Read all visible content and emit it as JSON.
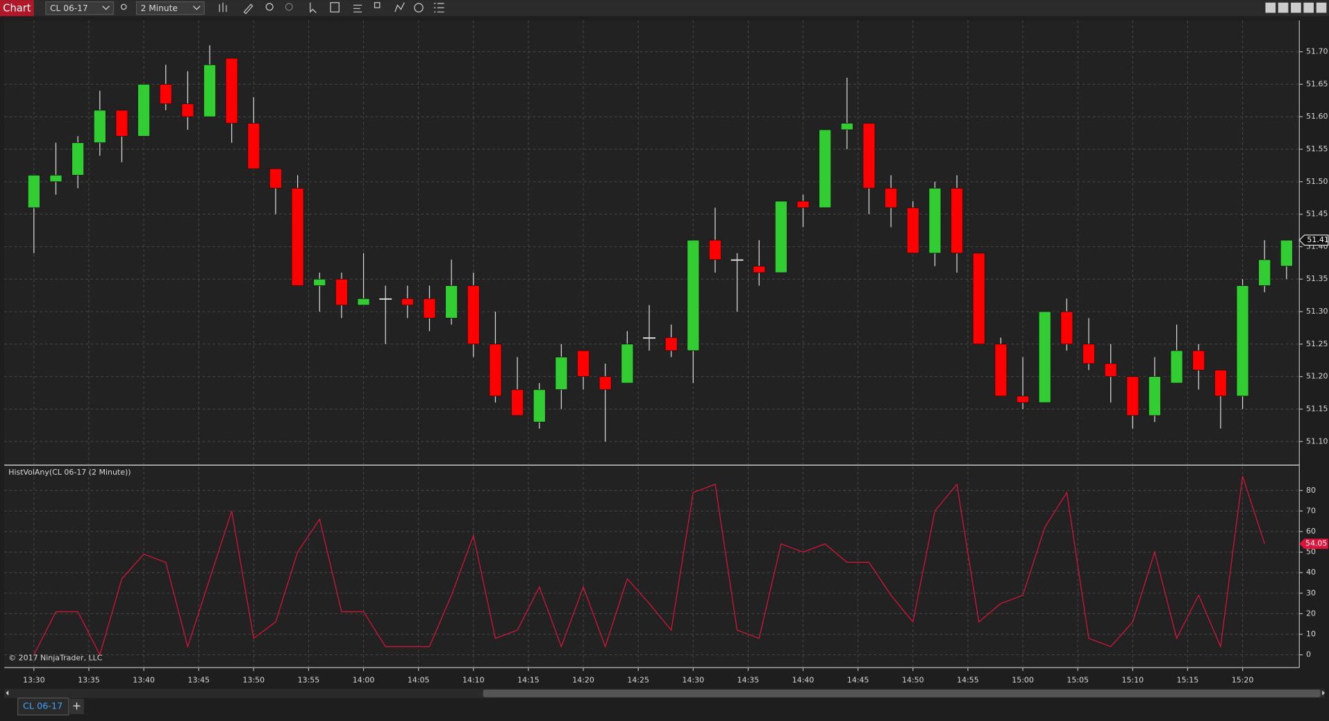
{
  "toolbar": {
    "title": "Chart",
    "instrument": "CL 06-17",
    "interval": "2 Minute"
  },
  "chart_data": [
    {
      "type": "candlestick",
      "x": [
        "13:30",
        "13:32",
        "13:34",
        "13:36",
        "13:38",
        "13:40",
        "13:42",
        "13:44",
        "13:46",
        "13:48",
        "13:50",
        "13:52",
        "13:54",
        "13:56",
        "13:58",
        "14:00",
        "14:02",
        "14:04",
        "14:06",
        "14:08",
        "14:10",
        "14:12",
        "14:14",
        "14:16",
        "14:18",
        "14:20",
        "14:22",
        "14:24",
        "14:26",
        "14:28",
        "14:30",
        "14:32",
        "14:34",
        "14:36",
        "14:38",
        "14:40",
        "14:42",
        "14:44",
        "14:46",
        "14:48",
        "14:50",
        "14:52",
        "14:54",
        "14:56",
        "14:58",
        "15:00",
        "15:02",
        "15:04",
        "15:06",
        "15:08",
        "15:10",
        "15:12",
        "15:14",
        "15:16",
        "15:18",
        "15:20",
        "15:22",
        "15:24"
      ],
      "open": [
        51.46,
        51.5,
        51.51,
        51.56,
        51.61,
        51.57,
        51.65,
        51.62,
        51.6,
        51.69,
        51.59,
        51.52,
        51.49,
        51.34,
        51.35,
        51.31,
        51.32,
        51.32,
        51.32,
        51.29,
        51.34,
        51.25,
        51.18,
        51.13,
        51.18,
        51.24,
        51.2,
        51.19,
        51.26,
        51.26,
        51.24,
        51.41,
        51.38,
        51.37,
        51.36,
        51.47,
        51.46,
        51.58,
        51.59,
        51.49,
        51.46,
        51.39,
        51.49,
        51.39,
        51.25,
        51.17,
        51.16,
        51.3,
        51.25,
        51.22,
        51.2,
        51.14,
        51.19,
        51.24,
        51.21,
        51.17,
        51.34,
        51.37
      ],
      "high": [
        51.51,
        51.56,
        51.57,
        51.64,
        51.61,
        51.65,
        51.68,
        51.67,
        51.71,
        51.69,
        51.63,
        51.52,
        51.51,
        51.36,
        51.36,
        51.39,
        51.34,
        51.34,
        51.34,
        51.38,
        51.36,
        51.3,
        51.23,
        51.19,
        51.25,
        51.24,
        51.22,
        51.27,
        51.31,
        51.28,
        51.41,
        51.46,
        51.39,
        51.41,
        51.47,
        51.48,
        51.58,
        51.66,
        51.59,
        51.51,
        51.47,
        51.5,
        51.51,
        51.39,
        51.26,
        51.23,
        51.3,
        51.32,
        51.29,
        51.25,
        51.2,
        51.23,
        51.28,
        51.25,
        51.21,
        51.35,
        51.41,
        51.41
      ],
      "low": [
        51.39,
        51.48,
        51.49,
        51.54,
        51.53,
        51.57,
        51.61,
        51.58,
        51.6,
        51.56,
        51.52,
        51.45,
        51.34,
        51.3,
        51.29,
        51.31,
        51.25,
        51.29,
        51.27,
        51.28,
        51.23,
        51.16,
        51.14,
        51.12,
        51.15,
        51.18,
        51.1,
        51.19,
        51.24,
        51.23,
        51.19,
        51.36,
        51.3,
        51.34,
        51.36,
        51.43,
        51.46,
        51.55,
        51.45,
        51.43,
        51.39,
        51.37,
        51.36,
        51.25,
        51.17,
        51.15,
        51.16,
        51.24,
        51.21,
        51.16,
        51.12,
        51.13,
        51.19,
        51.18,
        51.12,
        51.15,
        51.33,
        51.35
      ],
      "close": [
        51.51,
        51.51,
        51.56,
        51.61,
        51.57,
        51.65,
        51.62,
        51.6,
        51.68,
        51.59,
        51.52,
        51.49,
        51.34,
        51.35,
        51.31,
        51.32,
        51.32,
        51.31,
        51.29,
        51.34,
        51.25,
        51.17,
        51.14,
        51.18,
        51.23,
        51.2,
        51.18,
        51.25,
        51.26,
        51.24,
        51.41,
        51.38,
        51.38,
        51.36,
        51.47,
        51.46,
        51.58,
        51.59,
        51.49,
        51.46,
        51.39,
        51.49,
        51.39,
        51.25,
        51.17,
        51.16,
        51.3,
        51.25,
        51.22,
        51.2,
        51.14,
        51.2,
        51.24,
        51.21,
        51.17,
        51.34,
        51.38,
        51.41
      ],
      "up_color": "#32cd32",
      "down_color": "#ff0000",
      "ylim": [
        51.065,
        51.747
      ],
      "yticks": [
        {
          "value": 51.1,
          "label": "51.10"
        },
        51.15,
        {
          "value": 51.2,
          "label": "51.20"
        },
        51.25,
        {
          "value": 51.3,
          "label": "51.30"
        },
        51.35,
        {
          "value": 51.4,
          "label": "51.40"
        },
        51.45,
        {
          "value": 51.5,
          "label": "51.50"
        },
        51.55,
        {
          "value": 51.6,
          "label": "51.60"
        },
        51.65,
        {
          "value": 51.7,
          "label": "51.70"
        }
      ],
      "grid": true
    },
    {
      "type": "line",
      "title": "HistVolAny(CL 06-17 (2 Minute))",
      "color": "#dc143c",
      "x": [
        "13:30",
        "13:32",
        "13:34",
        "13:36",
        "13:38",
        "13:40",
        "13:42",
        "13:44",
        "13:46",
        "13:48",
        "13:50",
        "13:52",
        "13:54",
        "13:56",
        "13:58",
        "14:00",
        "14:02",
        "14:04",
        "14:06",
        "14:08",
        "14:10",
        "14:12",
        "14:14",
        "14:16",
        "14:18",
        "14:20",
        "14:22",
        "14:24",
        "14:26",
        "14:28",
        "14:30",
        "14:32",
        "14:34",
        "14:36",
        "14:38",
        "14:40",
        "14:42",
        "14:44",
        "14:46",
        "14:48",
        "14:50",
        "14:52",
        "14:54",
        "14:56",
        "14:58",
        "15:00",
        "15:02",
        "15:04",
        "15:06",
        "15:08",
        "15:10",
        "15:12",
        "15:14",
        "15:16",
        "15:18",
        "15:20",
        "15:22"
      ],
      "values": [
        0,
        21,
        21,
        0,
        37,
        49,
        45,
        4,
        37,
        70,
        8,
        16,
        50,
        66,
        21,
        21,
        4,
        4,
        4,
        29,
        58,
        8,
        12,
        33,
        4,
        33,
        4,
        37,
        25,
        12,
        79,
        83,
        12,
        8,
        54,
        50,
        54,
        45,
        45,
        29,
        16,
        70,
        83,
        16,
        25,
        29,
        62,
        79,
        8,
        4,
        16,
        50,
        8,
        29,
        4,
        87,
        54.05
      ],
      "ylim": [
        -6.2,
        91.1
      ],
      "yticks": [
        0,
        10,
        20,
        30,
        40,
        50,
        60,
        70,
        80
      ],
      "xticks": [
        "13:30",
        "13:35",
        "13:40",
        "13:45",
        "13:50",
        "13:55",
        "14:00",
        "14:05",
        "14:10",
        "14:15",
        "14:20",
        "14:25",
        "14:30",
        "14:35",
        "14:40",
        "14:45",
        "14:50",
        "14:55",
        "15:00",
        "15:05",
        "15:10",
        "15:15",
        "15:20"
      ],
      "grid": true
    }
  ],
  "copyright": "© 2017 NinjaTrader, LLC",
  "tabs": [
    "CL 06-17"
  ],
  "new_tab": "+"
}
